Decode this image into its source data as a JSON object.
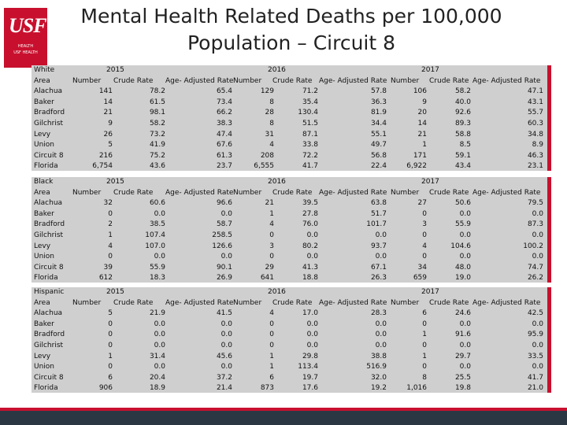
{
  "logo": {
    "mark": "USF",
    "sub1": "HEALTH",
    "sub2": "USF HEALTH"
  },
  "title": {
    "line1": "Mental  Health Related Deaths per 100,000",
    "line2": "Population – Circuit 8"
  },
  "colors": {
    "brand_red": "#c8102e",
    "panel": "#cfcfcf",
    "footer": "#2c3744"
  },
  "tables": [
    {
      "group": "White",
      "years": [
        "2015",
        "2016",
        "2017"
      ],
      "headers": [
        "Number",
        "Crude Rate",
        "Age- Adjusted Rate",
        "Number",
        "Crude Rate",
        "Age- Adjusted Rate",
        "Number",
        "Crude Rate",
        "Age- Adjusted Rate"
      ],
      "area_label": "Area",
      "rows": [
        {
          "area": "Alachua",
          "values": [
            "141",
            "78.2",
            "65.4",
            "129",
            "71.2",
            "57.8",
            "106",
            "58.2",
            "47.1"
          ]
        },
        {
          "area": "Baker",
          "values": [
            "14",
            "61.5",
            "73.4",
            "8",
            "35.4",
            "36.3",
            "9",
            "40.0",
            "43.1"
          ]
        },
        {
          "area": "Bradford",
          "values": [
            "21",
            "98.1",
            "66.2",
            "28",
            "130.4",
            "81.9",
            "20",
            "92.6",
            "55.7"
          ]
        },
        {
          "area": "Gilchrist",
          "values": [
            "9",
            "58.2",
            "38.3",
            "8",
            "51.5",
            "34.4",
            "14",
            "89.3",
            "60.3"
          ]
        },
        {
          "area": "Levy",
          "values": [
            "26",
            "73.2",
            "47.4",
            "31",
            "87.1",
            "55.1",
            "21",
            "58.8",
            "34.8"
          ]
        },
        {
          "area": "Union",
          "values": [
            "5",
            "41.9",
            "67.6",
            "4",
            "33.8",
            "49.7",
            "1",
            "8.5",
            "8.9"
          ]
        },
        {
          "area": "Circuit 8",
          "values": [
            "216",
            "75.2",
            "61.3",
            "208",
            "72.2",
            "56.8",
            "171",
            "59.1",
            "46.3"
          ]
        },
        {
          "area": "Florida",
          "values": [
            "6,754",
            "43.6",
            "23.7",
            "6,555",
            "41.7",
            "22.4",
            "6,922",
            "43.4",
            "23.1"
          ]
        }
      ]
    },
    {
      "group": "Black",
      "years": [
        "2015",
        "2016",
        "2017"
      ],
      "headers": [
        "Number",
        "Crude Rate",
        "Age- Adjusted Rate",
        "Number",
        "Crude Rate",
        "Age- Adjusted Rate",
        "Number",
        "Crude Rate",
        "Age- Adjusted Rate"
      ],
      "area_label": "Area",
      "rows": [
        {
          "area": "Alachua",
          "values": [
            "32",
            "60.6",
            "96.6",
            "21",
            "39.5",
            "63.8",
            "27",
            "50.6",
            "79.5"
          ]
        },
        {
          "area": "Baker",
          "values": [
            "0",
            "0.0",
            "0.0",
            "1",
            "27.8",
            "51.7",
            "0",
            "0.0",
            "0.0"
          ]
        },
        {
          "area": "Bradford",
          "values": [
            "2",
            "38.5",
            "58.7",
            "4",
            "76.0",
            "101.7",
            "3",
            "55.9",
            "87.3"
          ]
        },
        {
          "area": "Gilchrist",
          "values": [
            "1",
            "107.4",
            "258.5",
            "0",
            "0.0",
            "0.0",
            "0",
            "0.0",
            "0.0"
          ]
        },
        {
          "area": "Levy",
          "values": [
            "4",
            "107.0",
            "126.6",
            "3",
            "80.2",
            "93.7",
            "4",
            "104.6",
            "100.2"
          ]
        },
        {
          "area": "Union",
          "values": [
            "0",
            "0.0",
            "0.0",
            "0",
            "0.0",
            "0.0",
            "0",
            "0.0",
            "0.0"
          ]
        },
        {
          "area": "Circuit 8",
          "values": [
            "39",
            "55.9",
            "90.1",
            "29",
            "41.3",
            "67.1",
            "34",
            "48.0",
            "74.7"
          ]
        },
        {
          "area": "Florida",
          "values": [
            "612",
            "18.3",
            "26.9",
            "641",
            "18.8",
            "26.3",
            "659",
            "19.0",
            "26.2"
          ]
        }
      ]
    },
    {
      "group": "Hispanic",
      "years": [
        "2015",
        "2016",
        "2017"
      ],
      "headers": [
        "Number",
        "Crude Rate",
        "Age- Adjusted Rate",
        "Number",
        "Crude Rate",
        "Age- Adjusted Rate",
        "Number",
        "Crude Rate",
        "Age- Adjusted Rate"
      ],
      "area_label": "Area",
      "rows": [
        {
          "area": "Alachua",
          "values": [
            "5",
            "21.9",
            "41.5",
            "4",
            "17.0",
            "28.3",
            "6",
            "24.6",
            "42.5"
          ]
        },
        {
          "area": "Baker",
          "values": [
            "0",
            "0.0",
            "0.0",
            "0",
            "0.0",
            "0.0",
            "0",
            "0.0",
            "0.0"
          ]
        },
        {
          "area": "Bradford",
          "values": [
            "0",
            "0.0",
            "0.0",
            "0",
            "0.0",
            "0.0",
            "1",
            "91.6",
            "95.9"
          ]
        },
        {
          "area": "Gilchrist",
          "values": [
            "0",
            "0.0",
            "0.0",
            "0",
            "0.0",
            "0.0",
            "0",
            "0.0",
            "0.0"
          ]
        },
        {
          "area": "Levy",
          "values": [
            "1",
            "31.4",
            "45.6",
            "1",
            "29.8",
            "38.8",
            "1",
            "29.7",
            "33.5"
          ]
        },
        {
          "area": "Union",
          "values": [
            "0",
            "0.0",
            "0.0",
            "1",
            "113.4",
            "516.9",
            "0",
            "0.0",
            "0.0"
          ]
        },
        {
          "area": "Circuit 8",
          "values": [
            "6",
            "20.4",
            "37.2",
            "6",
            "19.7",
            "32.0",
            "8",
            "25.5",
            "41.7"
          ]
        },
        {
          "area": "Florida",
          "values": [
            "906",
            "18.9",
            "21.4",
            "873",
            "17.6",
            "19.2",
            "1,016",
            "19.8",
            "21.0"
          ]
        }
      ]
    }
  ]
}
